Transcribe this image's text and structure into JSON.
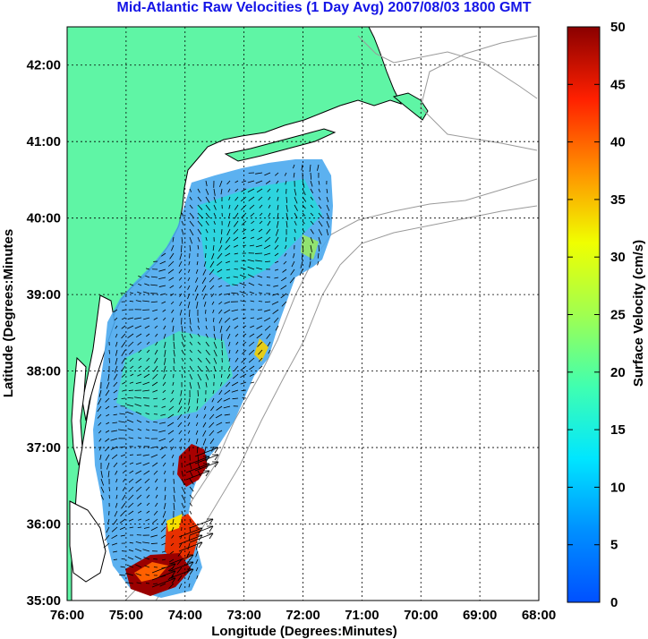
{
  "title": "Mid-Atlantic Raw Velocities (1 Day Avg) 2007/08/03 1800 GMT",
  "map": {
    "xlabel": "Longitude (Degrees:Minutes)",
    "ylabel": "Latitude (Degrees:Minutes",
    "x_ticks": [
      "76:00",
      "75:00",
      "74:00",
      "73:00",
      "72:00",
      "71:00",
      "70:00",
      "69:00",
      "68:00"
    ],
    "y_ticks": [
      "35:00",
      "36:00",
      "37:00",
      "38:00",
      "39:00",
      "40:00",
      "41:00",
      "42:00"
    ],
    "lon_range": [
      -76,
      -68
    ],
    "lat_range": [
      35,
      42.5
    ],
    "grid": true,
    "land_color": "#5ff5a5",
    "water_color": "#ffffff",
    "bathymetry_color": "#9a9a9a"
  },
  "colorbar": {
    "label": "Surface Velocity (cm/s)",
    "ticks": [
      "0",
      "5",
      "10",
      "15",
      "20",
      "25",
      "30",
      "35",
      "40",
      "45",
      "50"
    ],
    "range": [
      0,
      50
    ],
    "colormap": "jet"
  }
}
